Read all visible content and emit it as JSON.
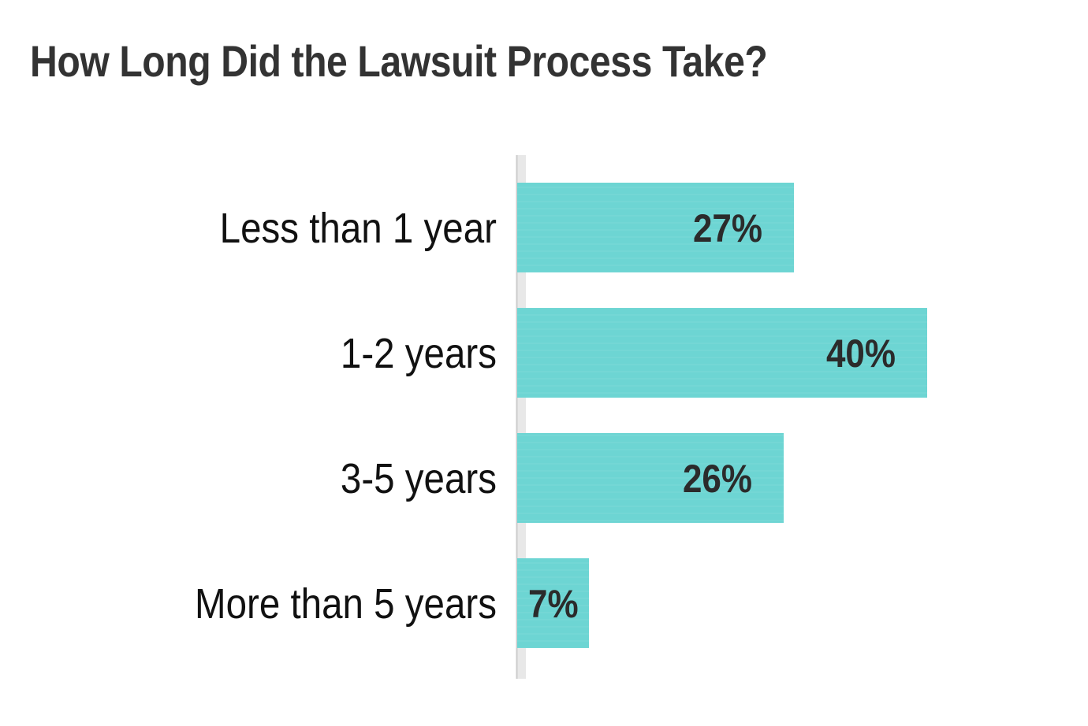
{
  "chart_data": {
    "type": "bar",
    "orientation": "horizontal",
    "title": "How Long Did the Lawsuit Process Take?",
    "categories": [
      "Less than 1 year",
      "1-2 years",
      "3-5 years",
      "More than 5 years"
    ],
    "values": [
      27,
      40,
      26,
      7
    ],
    "value_labels": [
      "27%",
      "40%",
      "26%",
      "7%"
    ],
    "unit": "%",
    "xlim": [
      0,
      40
    ],
    "grid": false,
    "legend": "none",
    "bar_color": "#6dd5d3",
    "axis_color": "#cccccc",
    "label_color": "#111111",
    "value_label_color": "#2b2b2b",
    "title_color": "#333333"
  }
}
